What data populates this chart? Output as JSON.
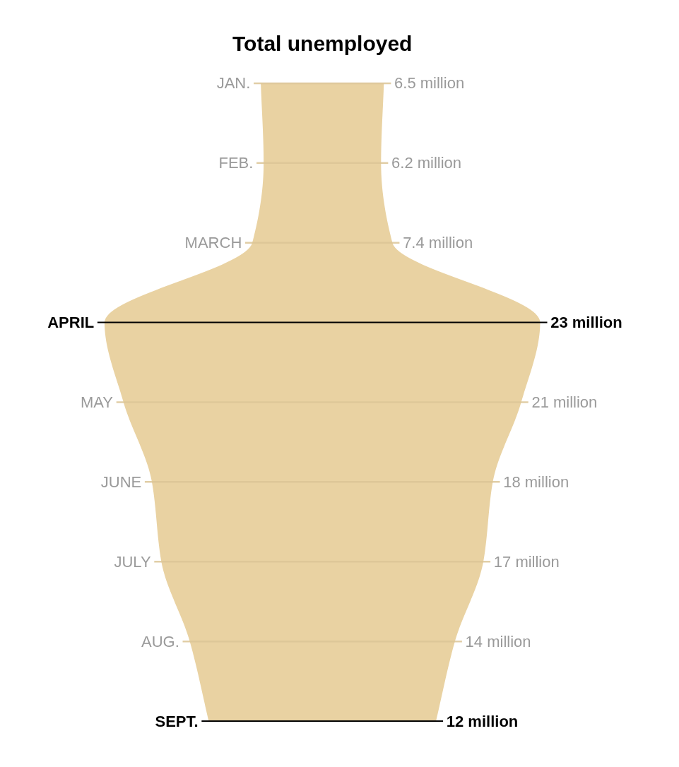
{
  "chart_data": {
    "type": "other",
    "title": "Total unemployed",
    "categories": [
      "JAN.",
      "FEB.",
      "MARCH",
      "APRIL",
      "MAY",
      "JUNE",
      "JULY",
      "AUG.",
      "SEPT."
    ],
    "values": [
      6.5,
      6.2,
      7.4,
      23,
      21,
      18,
      17,
      14,
      12
    ],
    "value_labels": [
      "6.5 million",
      "6.2 million",
      "7.4 million",
      "23 million",
      "21 million",
      "18 million",
      "17 million",
      "14 million",
      "12 million"
    ],
    "color": "#e9d2a2",
    "colors": [
      "#dcc597",
      "#dcc597",
      "#dcc597",
      "#000000",
      "#dcc597",
      "#dcc597",
      "#dcc597",
      "#dcc597",
      "#000000"
    ]
  }
}
